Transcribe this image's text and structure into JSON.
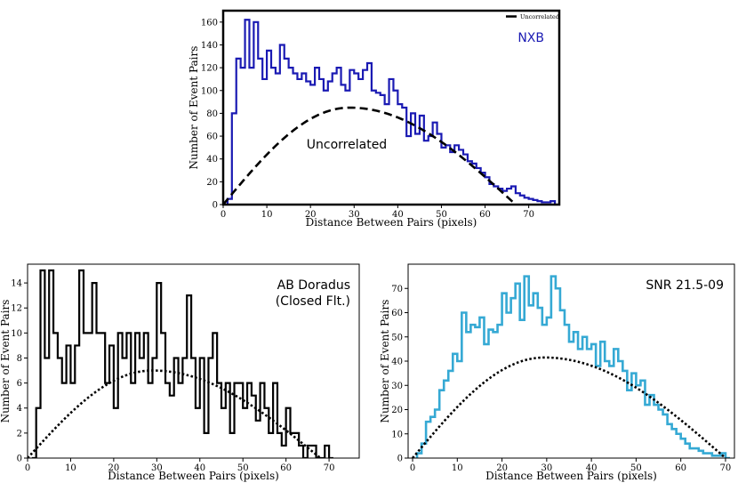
{
  "chart_data": [
    {
      "type": "step",
      "panel": "top",
      "title": "",
      "annotation": "NXB",
      "annotation_color": "#1a1ab3",
      "inline_label": "Uncorrelated",
      "xlabel": "Distance Between Pairs (pixels)",
      "ylabel": "Number of Event Pairs",
      "xlim": [
        0,
        77
      ],
      "ylim": [
        0,
        170
      ],
      "xticks": [
        0,
        10,
        20,
        30,
        40,
        50,
        60,
        70
      ],
      "yticks": [
        0,
        20,
        40,
        60,
        80,
        100,
        120,
        140,
        160
      ],
      "legend": {
        "position": "top-right",
        "entries": [
          "Uncorrelated"
        ]
      },
      "series": [
        {
          "name": "NXB",
          "kind": "histogram-step",
          "color": "#1a1ab3",
          "bin_start": 1,
          "bin_width": 1,
          "values": [
            5,
            80,
            128,
            120,
            162,
            120,
            160,
            128,
            110,
            135,
            120,
            115,
            140,
            128,
            120,
            115,
            110,
            115,
            108,
            105,
            120,
            110,
            100,
            108,
            115,
            120,
            105,
            100,
            118,
            115,
            110,
            118,
            124,
            100,
            98,
            96,
            88,
            110,
            100,
            88,
            85,
            60,
            80,
            62,
            78,
            56,
            60,
            72,
            62,
            50,
            52,
            46,
            52,
            48,
            44,
            38,
            36,
            32,
            28,
            24,
            18,
            16,
            14,
            12,
            14,
            16,
            10,
            8,
            6,
            5,
            4,
            3,
            2,
            2,
            3
          ]
        },
        {
          "name": "Uncorrelated",
          "kind": "curve-dashed",
          "color": "#000000",
          "peak_x": 29,
          "peak_y": 85,
          "zero_at": [
            0,
            67
          ]
        }
      ]
    },
    {
      "type": "step",
      "panel": "bottom-left",
      "title": "",
      "annotation": [
        "AB Doradus",
        "(Closed Flt.)"
      ],
      "annotation_color": "#000000",
      "xlabel": "Distance Between Pairs (pixels)",
      "ylabel": "Number of Event Pairs",
      "xlim": [
        0,
        77
      ],
      "ylim": [
        0,
        15.5
      ],
      "xticks": [
        0,
        10,
        20,
        30,
        40,
        50,
        60,
        70
      ],
      "yticks": [
        0,
        2,
        4,
        6,
        8,
        10,
        12,
        14
      ],
      "series": [
        {
          "name": "AB Doradus",
          "kind": "histogram-step",
          "color": "#000000",
          "bin_start": 1,
          "bin_width": 1,
          "values": [
            0,
            4,
            15,
            8,
            15,
            10,
            8,
            6,
            9,
            6,
            9,
            15,
            10,
            10,
            14,
            10,
            10,
            6,
            9,
            4,
            10,
            8,
            10,
            6,
            10,
            8,
            10,
            6,
            8,
            14,
            10,
            6,
            5,
            8,
            6,
            8,
            13,
            8,
            4,
            8,
            2,
            8,
            10,
            6,
            4,
            6,
            2,
            6,
            6,
            4,
            6,
            5,
            3,
            6,
            4,
            2,
            6,
            2,
            1,
            4,
            2,
            2,
            1,
            0,
            1,
            1,
            0,
            0,
            1,
            0
          ]
        },
        {
          "name": "Uncorrelated",
          "kind": "curve-dotted",
          "color": "#000000",
          "peak_x": 29,
          "peak_y": 7,
          "zero_at": [
            0,
            68
          ]
        }
      ]
    },
    {
      "type": "step",
      "panel": "bottom-right",
      "title": "",
      "annotation": "SNR 21.5-09",
      "annotation_color": "#000000",
      "xlabel": "Distance Between Pairs (pixels)",
      "ylabel": "Number of Event Pairs",
      "xlim": [
        -1,
        72
      ],
      "ylim": [
        0,
        80
      ],
      "xticks": [
        0,
        10,
        20,
        30,
        40,
        50,
        60,
        70
      ],
      "yticks": [
        0,
        10,
        20,
        30,
        40,
        50,
        60,
        70
      ],
      "series": [
        {
          "name": "SNR 21.5-09",
          "kind": "histogram-step",
          "color": "#35a9d4",
          "bin_start": 1,
          "bin_width": 1,
          "values": [
            2,
            6,
            15,
            17,
            20,
            28,
            32,
            36,
            43,
            40,
            60,
            52,
            55,
            54,
            58,
            47,
            53,
            52,
            55,
            68,
            60,
            66,
            72,
            57,
            75,
            63,
            68,
            62,
            55,
            58,
            75,
            70,
            61,
            55,
            48,
            52,
            45,
            50,
            45,
            47,
            38,
            48,
            40,
            38,
            45,
            40,
            36,
            28,
            35,
            30,
            32,
            22,
            26,
            22,
            20,
            18,
            14,
            12,
            10,
            8,
            6,
            4,
            4,
            3,
            2,
            2,
            1,
            1,
            2,
            0
          ]
        },
        {
          "name": "Uncorrelated",
          "kind": "curve-dotted",
          "color": "#000000",
          "peak_x": 29.5,
          "peak_y": 41.5,
          "zero_at": [
            0,
            70
          ]
        }
      ]
    }
  ]
}
